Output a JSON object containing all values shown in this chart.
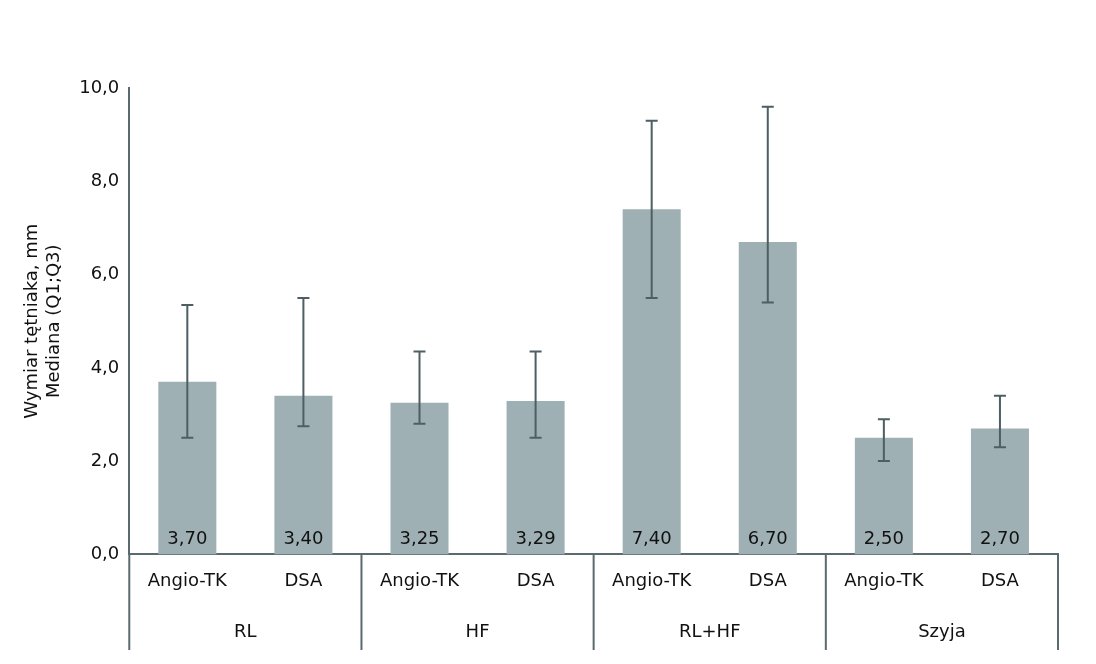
{
  "chart_data": {
    "type": "bar",
    "ylabel": "Wymiar tętniaka, mm\nMediana (Q1;Q3)",
    "categories": [
      "Angio-TK",
      "DSA",
      "Angio-TK",
      "DSA",
      "Angio-TK",
      "DSA",
      "Angio-TK",
      "DSA"
    ],
    "values": [
      3.7,
      3.4,
      3.25,
      3.29,
      7.4,
      6.7,
      2.5,
      2.7
    ],
    "value_labels": [
      "3,70",
      "3,40",
      "3,25",
      "3,29",
      "7,40",
      "6,70",
      "2,50",
      "2,70"
    ],
    "errors": [
      [
        2.5,
        5.35
      ],
      [
        2.75,
        5.5
      ],
      [
        2.8,
        4.35
      ],
      [
        2.5,
        4.35
      ],
      [
        5.5,
        9.3
      ],
      [
        5.4,
        9.6
      ],
      [
        2.0,
        2.9
      ],
      [
        2.3,
        3.4
      ]
    ],
    "color": "#9fb0b5",
    "annotations": [
      "RL",
      "HF",
      "RL+HF",
      "Szyja"
    ],
    "ylim": [
      0,
      10
    ],
    "yticks": [
      {
        "value": 0,
        "label": "0,0"
      },
      {
        "value": 2,
        "label": "2,0"
      },
      {
        "value": 4,
        "label": "4,0"
      },
      {
        "value": 6,
        "label": "6,0"
      },
      {
        "value": 8,
        "label": "8,0"
      },
      {
        "value": 10,
        "label": "10,0"
      }
    ],
    "grid": false,
    "legend": false
  }
}
